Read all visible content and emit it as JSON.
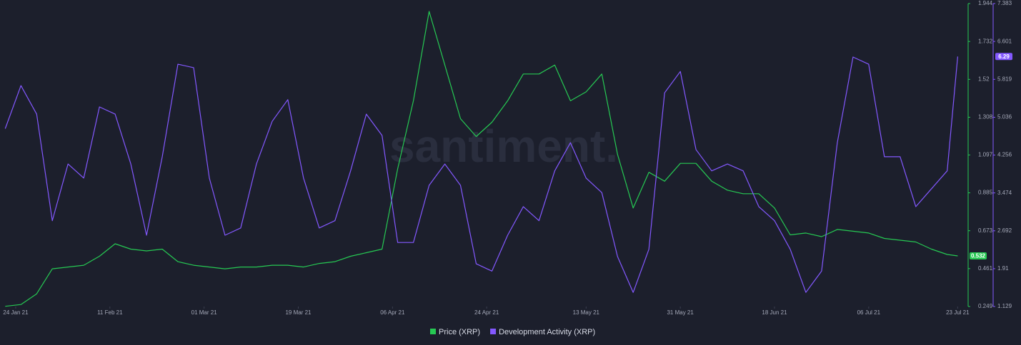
{
  "chart_data": {
    "type": "line",
    "watermark": "santiment.",
    "x": [
      "2021-01-22",
      "2021-01-25",
      "2021-01-28",
      "2021-01-31",
      "2021-02-03",
      "2021-02-06",
      "2021-02-09",
      "2021-02-12",
      "2021-02-15",
      "2021-02-18",
      "2021-02-21",
      "2021-02-24",
      "2021-02-27",
      "2021-03-02",
      "2021-03-05",
      "2021-03-08",
      "2021-03-11",
      "2021-03-14",
      "2021-03-17",
      "2021-03-20",
      "2021-03-23",
      "2021-03-26",
      "2021-03-29",
      "2021-04-01",
      "2021-04-04",
      "2021-04-07",
      "2021-04-10",
      "2021-04-13",
      "2021-04-16",
      "2021-04-19",
      "2021-04-22",
      "2021-04-25",
      "2021-04-28",
      "2021-05-01",
      "2021-05-04",
      "2021-05-07",
      "2021-05-10",
      "2021-05-13",
      "2021-05-16",
      "2021-05-19",
      "2021-05-22",
      "2021-05-25",
      "2021-05-28",
      "2021-05-31",
      "2021-06-03",
      "2021-06-06",
      "2021-06-09",
      "2021-06-12",
      "2021-06-15",
      "2021-06-18",
      "2021-06-21",
      "2021-06-24",
      "2021-06-27",
      "2021-06-30",
      "2021-07-03",
      "2021-07-06",
      "2021-07-09",
      "2021-07-12",
      "2021-07-15",
      "2021-07-18",
      "2021-07-21",
      "2021-07-23"
    ],
    "xlim": [
      "2021-01-21",
      "2021-07-25"
    ],
    "xticks": [
      {
        "value": "2021-01-24",
        "label": "24 Jan 21"
      },
      {
        "value": "2021-02-11",
        "label": "11 Feb 21"
      },
      {
        "value": "2021-03-01",
        "label": "01 Mar 21"
      },
      {
        "value": "2021-03-19",
        "label": "19 Mar 21"
      },
      {
        "value": "2021-04-06",
        "label": "06 Apr 21"
      },
      {
        "value": "2021-04-24",
        "label": "24 Apr 21"
      },
      {
        "value": "2021-05-13",
        "label": "13 May 21"
      },
      {
        "value": "2021-05-31",
        "label": "31 May 21"
      },
      {
        "value": "2021-06-18",
        "label": "18 Jun 21"
      },
      {
        "value": "2021-07-06",
        "label": "06 Jul 21"
      },
      {
        "value": "2021-07-23",
        "label": "23 Jul 21"
      }
    ],
    "ylim": [
      0.249,
      1.944
    ],
    "yticks": [
      0.249,
      0.461,
      0.673,
      0.885,
      1.097,
      1.308,
      1.52,
      1.732,
      1.944
    ],
    "y2lim": [
      1.129,
      7.383
    ],
    "y2ticks": [
      1.129,
      1.91,
      2.692,
      3.474,
      4.256,
      5.036,
      5.819,
      6.601,
      7.383
    ],
    "grid": false,
    "series": [
      {
        "name": "Price (XRP)",
        "color": "#26c953",
        "values": [
          0.25,
          0.26,
          0.32,
          0.46,
          0.47,
          0.48,
          0.53,
          0.6,
          0.57,
          0.56,
          0.57,
          0.5,
          0.48,
          0.47,
          0.46,
          0.47,
          0.47,
          0.48,
          0.48,
          0.47,
          0.49,
          0.5,
          0.53,
          0.55,
          0.57,
          1.02,
          1.4,
          1.9,
          1.6,
          1.3,
          1.2,
          1.28,
          1.4,
          1.55,
          1.55,
          1.6,
          1.4,
          1.45,
          1.55,
          1.1,
          0.8,
          1.0,
          0.95,
          1.05,
          1.05,
          0.95,
          0.9,
          0.88,
          0.88,
          0.8,
          0.65,
          0.66,
          0.64,
          0.68,
          0.67,
          0.66,
          0.63,
          0.62,
          0.61,
          0.57,
          0.54,
          0.532
        ]
      },
      {
        "name": "Development Activity (XRP)",
        "color": "#8358ff",
        "axis": "y2",
        "values": [
          4.8,
          5.69,
          5.1,
          2.9,
          4.07,
          3.78,
          5.25,
          5.1,
          4.07,
          2.6,
          4.22,
          6.13,
          6.06,
          3.78,
          2.6,
          2.75,
          4.07,
          4.95,
          5.4,
          3.78,
          2.75,
          2.9,
          3.93,
          5.1,
          4.66,
          2.45,
          2.45,
          3.63,
          4.07,
          3.63,
          2.01,
          1.86,
          2.6,
          3.19,
          2.9,
          3.93,
          4.51,
          3.78,
          3.48,
          2.16,
          1.42,
          2.31,
          5.54,
          5.98,
          4.37,
          3.93,
          4.07,
          3.93,
          3.19,
          2.9,
          2.31,
          1.42,
          1.86,
          4.51,
          6.28,
          6.13,
          4.22,
          4.22,
          3.19,
          3.56,
          3.93,
          6.29
        ]
      }
    ]
  }
}
